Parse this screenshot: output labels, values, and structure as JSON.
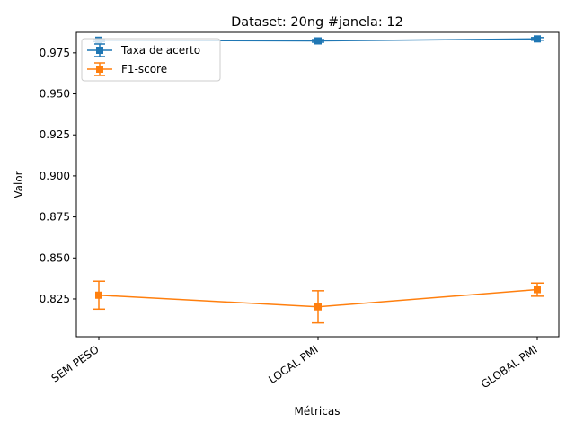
{
  "chart_data": {
    "type": "line",
    "title": "Dataset: 20ng #janela: 12",
    "xlabel": "Métricas",
    "ylabel": "Valor",
    "categories": [
      "SEM PESO",
      "LOCAL PMI",
      "GLOBAL PMI"
    ],
    "ylim": [
      0.802,
      0.9875
    ],
    "yticks": [
      "0.825",
      "0.850",
      "0.875",
      "0.900",
      "0.925",
      "0.950",
      "0.975"
    ],
    "grid": false,
    "legend_position": "top-left",
    "series": [
      {
        "name": "Taxa de acerto",
        "color": "#1f77b4",
        "marker": "square",
        "values": [
          0.9827,
          0.9823,
          0.9835
        ],
        "errors": [
          0.0008,
          0.0008,
          0.0008
        ]
      },
      {
        "name": "F1-score",
        "color": "#ff7f0e",
        "marker": "square",
        "values": [
          0.8273,
          0.8202,
          0.8307
        ],
        "errors": [
          0.0085,
          0.0098,
          0.004
        ]
      }
    ]
  }
}
